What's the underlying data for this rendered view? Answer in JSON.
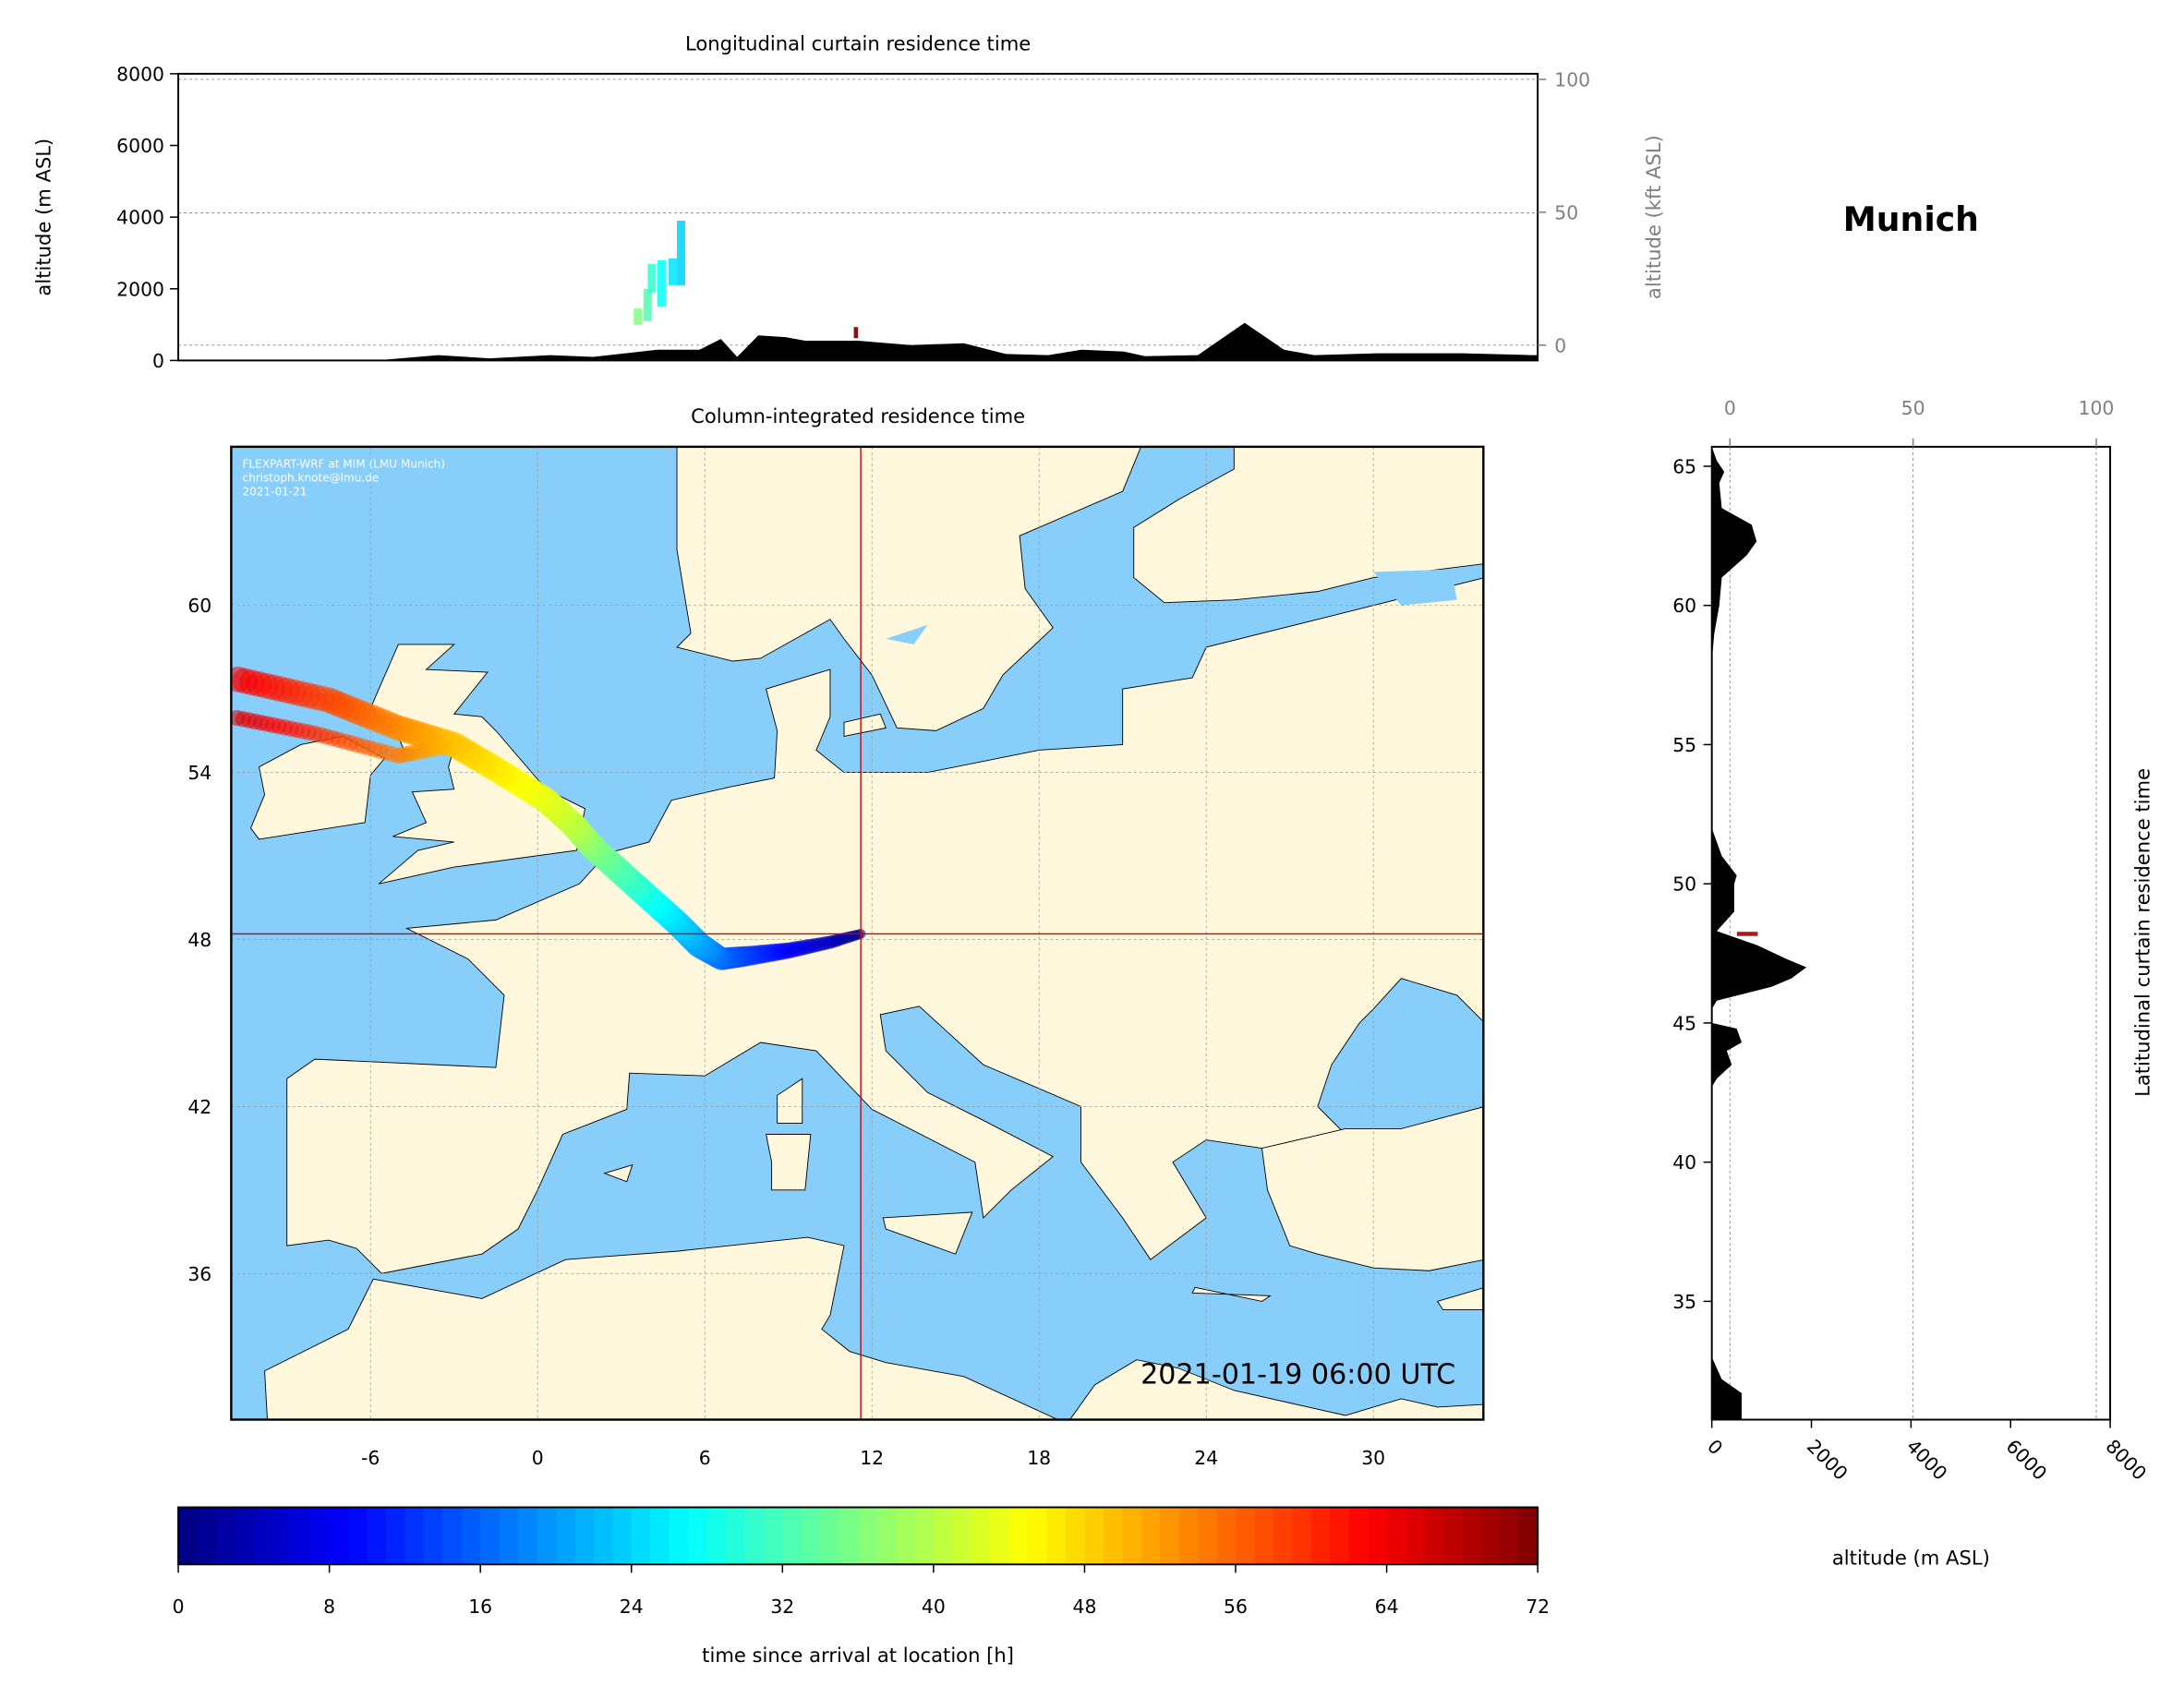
{
  "chart_data": [
    {
      "type": "area",
      "title": "Longitudinal curtain residence time",
      "ylabel": "altitude (m ASL)",
      "ylabel_right": "altitude (kft ASL)",
      "ylim": [
        0,
        8000
      ],
      "yticks": [
        "0",
        "2000",
        "4000",
        "6000",
        "8000"
      ],
      "yticks_right": [
        "0",
        "50",
        "100"
      ],
      "xlim_lon": [
        -11,
        34
      ],
      "terrain_lon": [
        -11,
        -4.45,
        -2.4,
        -0.7,
        1.3,
        2.74,
        4.86,
        6.25,
        6.96,
        7.5,
        8.2,
        9.1,
        9.75,
        11.5,
        13.25,
        15,
        16.4,
        17.8,
        18.9,
        20.3,
        21,
        22.75,
        24.3,
        25.6,
        26.6,
        28.7,
        31.5,
        33.8,
        34
      ],
      "terrain_alt": [
        0,
        0,
        150,
        60,
        150,
        100,
        300,
        300,
        600,
        100,
        700,
        650,
        550,
        550,
        430,
        480,
        180,
        150,
        300,
        250,
        120,
        150,
        1050,
        300,
        150,
        200,
        200,
        150,
        150
      ],
      "residence_color": "#e8f020"
    },
    {
      "type": "scatter",
      "title": "Column-integrated residence time",
      "xticks": [
        "-6",
        "0",
        "6",
        "12",
        "18",
        "24",
        "30"
      ],
      "yticks": [
        "36",
        "42",
        "48",
        "54",
        "60"
      ],
      "xlim_lon": [
        -11,
        34
      ],
      "ylim_lat": [
        30.75,
        65.7
      ],
      "grid": true,
      "location": {
        "name": "Munich",
        "lon": 11.6,
        "lat": 48.2
      },
      "trajectory": [
        [
          11.6,
          48.2,
          0
        ],
        [
          10.5,
          47.9,
          4
        ],
        [
          9,
          47.6,
          8
        ],
        [
          7.5,
          47.4,
          13
        ],
        [
          6.6,
          47.3,
          16
        ],
        [
          5.8,
          47.8,
          20
        ],
        [
          5,
          48.6,
          24
        ],
        [
          4,
          49.5,
          28
        ],
        [
          3,
          50.4,
          32
        ],
        [
          2,
          51.3,
          36
        ],
        [
          1.3,
          52.1,
          40
        ],
        [
          0.3,
          53,
          43
        ],
        [
          -1.3,
          54,
          46
        ],
        [
          -3,
          55,
          49
        ],
        [
          -5,
          55.6,
          53
        ],
        [
          -7.5,
          56.6,
          58
        ],
        [
          -11,
          57.4,
          64
        ]
      ],
      "trajectory_branch": [
        [
          -3,
          55,
          49
        ],
        [
          -5,
          54.6,
          54
        ],
        [
          -8,
          55.4,
          60
        ],
        [
          -11,
          56,
          66
        ]
      ],
      "credit": [
        "FLEXPART-WRF at MIM (LMU Munich)",
        "christoph.knote@lmu.de",
        "2021-01-21"
      ],
      "timestamp": "2021-01-19 06:00 UTC",
      "colors": {
        "sea": "#87cefa",
        "land": "#fff8dc",
        "crosshair": "#cc0000"
      }
    },
    {
      "type": "area",
      "title": "Latitudinal curtain residence time",
      "xlabel": "altitude (m ASL)",
      "xticks": [
        "0",
        "2000",
        "4000",
        "6000",
        "8000"
      ],
      "xticks_top": [
        "0",
        "50",
        "100"
      ],
      "yticks": [
        "35",
        "40",
        "45",
        "50",
        "55",
        "60",
        "65"
      ],
      "xlim": [
        0,
        8000
      ],
      "terrain_lat": [
        65.7,
        65.2,
        64.8,
        64.4,
        63.5,
        62.9,
        62.3,
        61.8,
        61,
        60,
        59,
        58,
        52,
        51,
        50.3,
        50,
        49,
        48.3,
        47.8,
        47.3,
        47,
        46.6,
        46.3,
        45.8,
        45.5,
        45,
        44.8,
        44.3,
        44,
        43.5,
        43,
        42.7,
        33,
        32.2,
        31.7,
        30.75
      ],
      "terrain_alt": [
        0,
        100,
        250,
        150,
        200,
        800,
        900,
        700,
        200,
        150,
        50,
        0,
        0,
        200,
        500,
        450,
        450,
        100,
        900,
        1500,
        1900,
        1600,
        1200,
        100,
        0,
        0,
        500,
        600,
        300,
        400,
        100,
        0,
        0,
        200,
        600,
        600
      ]
    },
    {
      "type": "colorbar",
      "label": "time since arrival at location [h]",
      "range": [
        0,
        72
      ],
      "ticks": [
        "0",
        "8",
        "16",
        "24",
        "32",
        "40",
        "48",
        "56",
        "64",
        "72"
      ],
      "colormap": "jet"
    }
  ],
  "location_title": "Munich"
}
